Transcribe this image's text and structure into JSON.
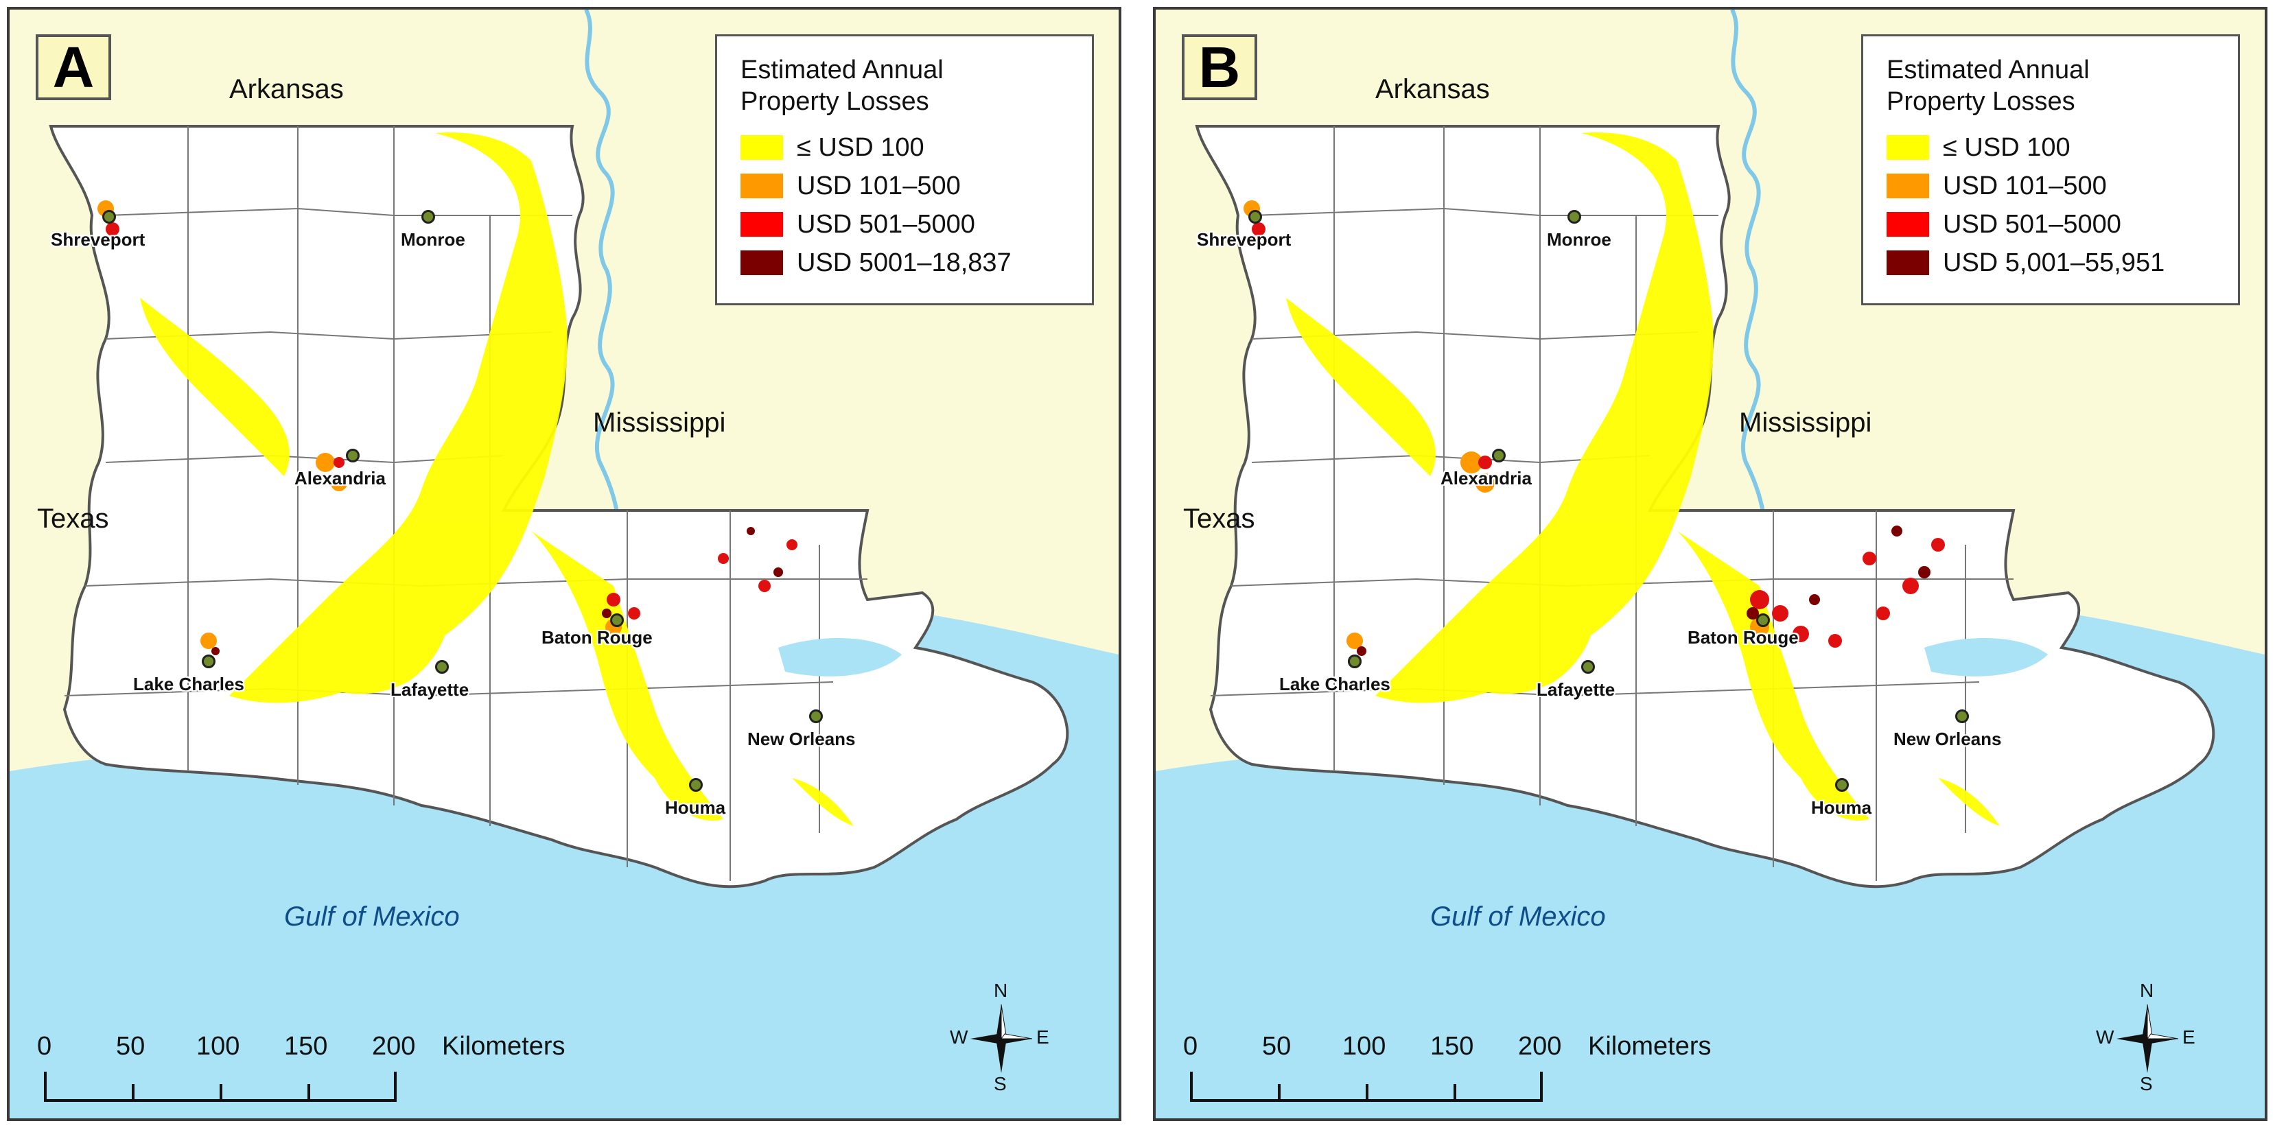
{
  "panels": [
    {
      "tag": "A",
      "legend": {
        "title_line1": "Estimated Annual",
        "title_line2": "Property Losses",
        "items": [
          {
            "label": "≤ USD 100",
            "color": "#ffff00"
          },
          {
            "label": "USD 101–500",
            "color": "#ff9900"
          },
          {
            "label": "USD 501–5000",
            "color": "#ff0000"
          },
          {
            "label": "USD 5001–18,837",
            "color": "#7a0000"
          }
        ]
      }
    },
    {
      "tag": "B",
      "legend": {
        "title_line1": "Estimated Annual",
        "title_line2": "Property Losses",
        "items": [
          {
            "label": "≤ USD 100",
            "color": "#ffff00"
          },
          {
            "label": "USD 101–500",
            "color": "#ff9900"
          },
          {
            "label": "USD 501–5000",
            "color": "#ff0000"
          },
          {
            "label": "USD 5,001–55,951",
            "color": "#7a0000"
          }
        ]
      }
    }
  ],
  "map_labels": {
    "arkansas": "Arkansas",
    "mississippi": "Mississippi",
    "texas": "Texas",
    "gulf": "Gulf of Mexico"
  },
  "cities": {
    "shreveport": "Shreveport",
    "monroe": "Monroe",
    "alexandria": "Alexandria",
    "lake_charles": "Lake Charles",
    "lafayette": "Lafayette",
    "baton_rouge": "Baton Rouge",
    "new_orleans": "New Orleans",
    "houma": "Houma"
  },
  "scale": {
    "ticks": [
      "0",
      "50",
      "100",
      "150",
      "200"
    ],
    "unit": "Kilometers"
  },
  "compass": {
    "n": "N",
    "s": "S",
    "e": "E",
    "w": "W"
  },
  "colors": {
    "land_outside": "#fbfad8",
    "water": "#a9e3f5",
    "louisiana": "#ffffff",
    "border": "#6b6b6b"
  }
}
